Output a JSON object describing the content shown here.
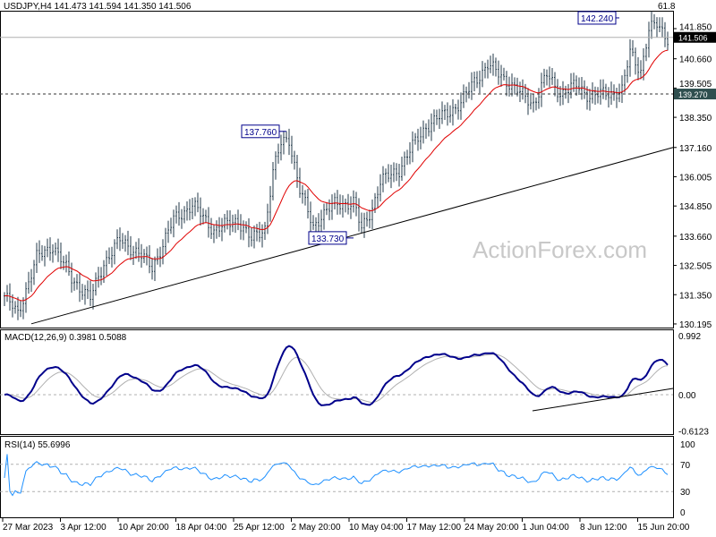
{
  "chart_data": [
    {
      "type": "line",
      "title": "USDJPY,H4  141.473 141.594 141.350 141.506",
      "symbol": "USDJPY,H4",
      "ohlc_last": [
        141.473,
        141.594,
        141.35,
        141.506
      ],
      "corner_label": "61.8",
      "y_ticks": [
        "141.850",
        "140.660",
        "139.505",
        "138.350",
        "137.160",
        "136.005",
        "134.850",
        "133.660",
        "132.505",
        "131.350",
        "130.195"
      ],
      "ylim": [
        130.195,
        141.85
      ],
      "current_price_label": "141.506",
      "current_price": 141.506,
      "level_label": "139.270",
      "level": 139.27,
      "annotations": [
        {
          "text": "142.240",
          "bar": 229,
          "price": 142.24
        },
        {
          "text": "137.760",
          "bar": 105,
          "price": 137.76
        },
        {
          "text": "133.730",
          "bar": 130,
          "price": 133.73
        }
      ],
      "trendline": {
        "from": {
          "bar": 10,
          "price": 130.2
        },
        "to": {
          "bar": 250,
          "price": 137.16
        }
      },
      "close_anchors": [
        [
          0,
          131.3
        ],
        [
          2,
          131.0
        ],
        [
          5,
          130.6
        ],
        [
          12,
          132.8
        ],
        [
          18,
          133.3
        ],
        [
          25,
          132.0
        ],
        [
          32,
          131.2
        ],
        [
          37,
          132.6
        ],
        [
          43,
          133.5
        ],
        [
          50,
          133.0
        ],
        [
          55,
          132.4
        ],
        [
          63,
          134.3
        ],
        [
          70,
          134.9
        ],
        [
          78,
          133.9
        ],
        [
          87,
          134.3
        ],
        [
          92,
          133.5
        ],
        [
          97,
          134.0
        ],
        [
          100,
          136.2
        ],
        [
          103,
          137.3
        ],
        [
          106,
          137.5
        ],
        [
          110,
          135.5
        ],
        [
          115,
          134.0
        ],
        [
          118,
          134.5
        ],
        [
          123,
          134.9
        ],
        [
          130,
          135.0
        ],
        [
          133,
          133.9
        ],
        [
          137,
          134.8
        ],
        [
          140,
          135.8
        ],
        [
          147,
          136.3
        ],
        [
          152,
          137.2
        ],
        [
          157,
          138.0
        ],
        [
          163,
          138.4
        ],
        [
          170,
          138.9
        ],
        [
          175,
          139.8
        ],
        [
          180,
          140.4
        ],
        [
          185,
          140.0
        ],
        [
          192,
          139.3
        ],
        [
          197,
          138.9
        ],
        [
          202,
          140.0
        ],
        [
          207,
          139.3
        ],
        [
          213,
          139.6
        ],
        [
          218,
          139.2
        ],
        [
          225,
          139.3
        ],
        [
          230,
          139.4
        ],
        [
          233,
          140.9
        ],
        [
          237,
          140.2
        ],
        [
          240,
          141.8
        ],
        [
          243,
          142.0
        ],
        [
          247,
          141.5
        ]
      ],
      "moving_average": "red",
      "watermark": "ActionForex.com",
      "x_labels": [
        "27 Mar 2023",
        "3 Apr 12:00",
        "10 Apr 20:00",
        "18 Apr 04:00",
        "25 Apr 12:00",
        "2 May 20:00",
        "10 May 04:00",
        "17 May 12:00",
        "24 May 20:00",
        "1 Jun 04:00",
        "8 Jun 12:00",
        "15 Jun 20:00"
      ]
    },
    {
      "type": "line",
      "title": "MACD(12,26,9) 0.3981 0.5088",
      "y_ticks": [
        "0.992",
        "0.00",
        "-0.6123"
      ],
      "ylim": [
        -0.6123,
        0.992
      ],
      "series": [
        {
          "name": "MACD",
          "color": "#00008b"
        },
        {
          "name": "Signal",
          "color": "#b0b0b0"
        }
      ]
    },
    {
      "type": "line",
      "title": "RSI(14) 55.6996",
      "y_ticks": [
        "100",
        "70",
        "30",
        "0"
      ],
      "ylim": [
        0,
        100
      ],
      "levels": [
        70,
        30
      ],
      "series": [
        {
          "name": "RSI",
          "color": "#1e90ff"
        }
      ]
    }
  ]
}
